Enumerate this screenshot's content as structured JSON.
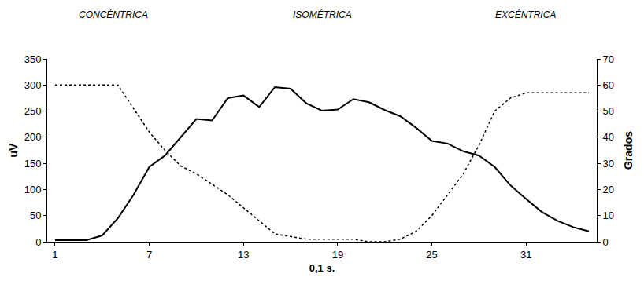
{
  "chart_data": {
    "type": "line",
    "annotations": [
      "CONCÉNTRICA",
      "ISOMÉTRICA",
      "EXCÉNTRICA"
    ],
    "x_label": "0,1 s.",
    "y_label": "uV",
    "y2_label": "Grados",
    "x": [
      1,
      2,
      3,
      4,
      5,
      6,
      7,
      8,
      9,
      10,
      11,
      12,
      13,
      14,
      15,
      16,
      17,
      18,
      19,
      20,
      21,
      22,
      23,
      24,
      25,
      26,
      27,
      28,
      29,
      30,
      31,
      32,
      33,
      34,
      35
    ],
    "series": [
      {
        "color": "#000000",
        "line_style": "solid",
        "values": [
          3,
          3,
          3,
          12,
          45,
          90,
          143,
          165,
          200,
          235,
          232,
          275,
          280,
          258,
          296,
          293,
          265,
          251,
          253,
          273,
          267,
          252,
          240,
          218,
          193,
          188,
          173,
          165,
          143,
          108,
          82,
          57,
          40,
          28,
          20
        ]
      },
      {
        "color": "#000000",
        "line_style": "dot",
        "axis": "y2",
        "values": [
          60,
          60,
          60,
          60,
          60,
          51,
          42,
          35,
          29,
          26,
          22,
          18,
          13,
          8,
          3,
          2,
          1,
          1,
          1,
          1,
          0,
          0,
          1,
          4,
          10,
          18,
          26,
          37,
          50,
          55,
          57,
          57,
          57,
          57,
          57
        ]
      }
    ],
    "xlim": [
      0.5,
      35.5
    ],
    "xticks": [
      1,
      7,
      13,
      19,
      25,
      31
    ],
    "ylim": [
      0,
      350
    ],
    "yticks": [
      0,
      50,
      100,
      150,
      200,
      250,
      300,
      350
    ],
    "y2lim": [
      0,
      70
    ],
    "y2ticks": [
      0,
      10,
      20,
      30,
      40,
      50,
      60,
      70
    ],
    "grid": false
  }
}
